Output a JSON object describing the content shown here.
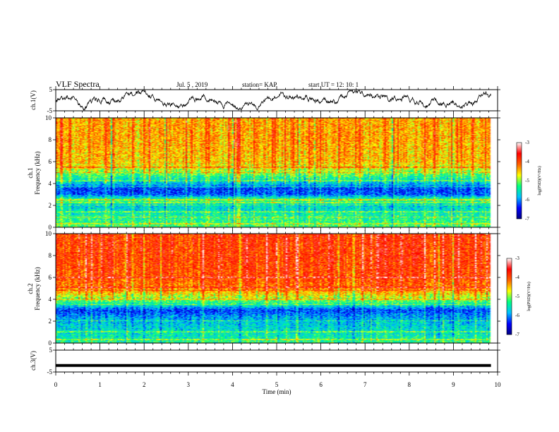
{
  "header": {
    "title": "VLF Spectra",
    "date": "Jul. 5 , 2019",
    "station": "station= KAP",
    "start": "start UT = 12: 10: 1"
  },
  "chart_data": [
    {
      "type": "line",
      "panel": "ch1_waveform",
      "ylabel": "ch.1(V)",
      "yticks": [
        "5",
        "-5"
      ],
      "ylim": [
        -5,
        5
      ],
      "xlim": [
        0,
        10
      ],
      "data_end_min": 9.85
    },
    {
      "type": "heatmap",
      "panel": "ch1_spectrogram",
      "ylabel_lines": [
        "ch.1",
        "Frequency (kHz)"
      ],
      "yticks": [
        "0",
        "2",
        "4",
        "6",
        "8",
        "10"
      ],
      "ylim": [
        0,
        10
      ],
      "xlim": [
        0,
        10
      ],
      "colorbar": {
        "label": "log(PSD)(V²/Hz)",
        "ticks": [
          "-3",
          "-4",
          "-5",
          "-6",
          "-7"
        ],
        "range": [
          -7,
          -3
        ]
      },
      "profile": {
        "freq_khz": [
          0,
          0.5,
          1,
          1.5,
          2,
          2.5,
          3,
          3.5,
          4,
          4.5,
          5,
          5.5,
          6,
          7,
          8,
          9,
          10
        ],
        "log_psd": [
          -5.2,
          -5.3,
          -5.4,
          -5.6,
          -5.7,
          -5.2,
          -6.2,
          -6.3,
          -5.8,
          -5.4,
          -5.0,
          -4.7,
          -4.5,
          -4.45,
          -4.4,
          -4.4,
          -4.4
        ]
      },
      "lines_khz": [
        0.3,
        0.9,
        1.4,
        2.0,
        2.25,
        2.5,
        3.7,
        4.25,
        5.0,
        5.5
      ]
    },
    {
      "type": "heatmap",
      "panel": "ch2_spectrogram",
      "ylabel_lines": [
        "ch.2",
        "Frequency (kHz)"
      ],
      "yticks": [
        "0",
        "2",
        "4",
        "6",
        "8",
        "10"
      ],
      "ylim": [
        0,
        10
      ],
      "xlim": [
        0,
        10
      ],
      "colorbar": {
        "label": "log(PSD)(V²/Hz)",
        "ticks": [
          "-3",
          "-4",
          "-5",
          "-6",
          "-7"
        ],
        "range": [
          -7,
          -3
        ]
      },
      "profile": {
        "freq_khz": [
          0,
          0.5,
          1,
          1.5,
          2,
          2.5,
          3,
          3.5,
          4,
          4.5,
          5,
          5.5,
          6,
          7,
          8,
          9,
          10
        ],
        "log_psd": [
          -5.3,
          -5.5,
          -5.6,
          -5.7,
          -5.8,
          -6.0,
          -6.3,
          -5.5,
          -5.0,
          -4.6,
          -4.2,
          -4.1,
          -4.0,
          -3.95,
          -3.9,
          -3.9,
          -3.9
        ]
      },
      "lines_khz": [
        0.3,
        1.0,
        2.0,
        3.5,
        4.0,
        4.8,
        5.1,
        6.0
      ]
    },
    {
      "type": "line",
      "panel": "ch3_waveform",
      "ylabel": "ch.3(V)",
      "yticks": [
        "5",
        "-5"
      ],
      "ylim": [
        -5,
        5
      ],
      "xlim": [
        0,
        10
      ],
      "constant_value": -2,
      "data_end_min": 9.85
    }
  ],
  "xaxis": {
    "label": "Time (min)",
    "ticks": [
      "0",
      "1",
      "2",
      "3",
      "4",
      "5",
      "6",
      "7",
      "8",
      "9",
      "10"
    ]
  },
  "colors": {
    "colormap": [
      "#000080",
      "#0000ff",
      "#00c0ff",
      "#00ff80",
      "#ffff00",
      "#ff6000",
      "#ff0000",
      "#ffffff"
    ],
    "trace": "#000000"
  }
}
